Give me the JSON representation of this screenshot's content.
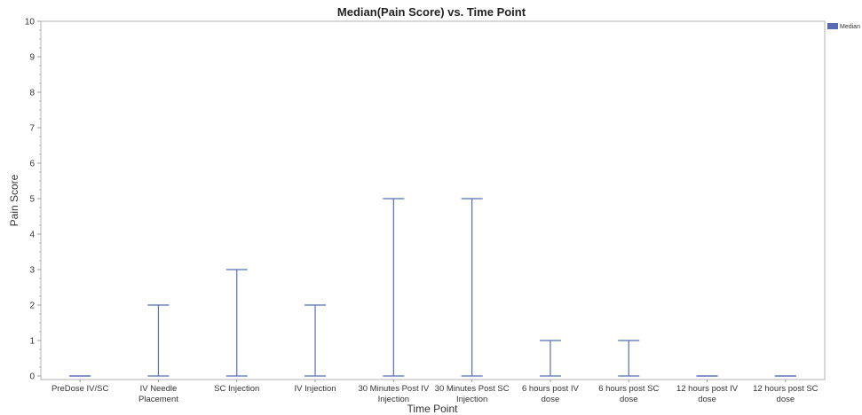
{
  "chart_data": {
    "type": "error-bar",
    "title": "Median(Pain Score) vs. Time Point",
    "xlabel": "Time Point",
    "ylabel": "Pain Score",
    "ylim": [
      0,
      10
    ],
    "yticks": [
      0,
      1,
      2,
      3,
      4,
      5,
      6,
      7,
      8,
      9,
      10
    ],
    "categories": [
      [
        "PreDose IV/SC"
      ],
      [
        "IV Needle",
        "Placement"
      ],
      [
        "SC Injection"
      ],
      [
        "IV Injection"
      ],
      [
        "30 Minutes Post IV",
        "Injection"
      ],
      [
        "30 Minutes Post SC",
        "Injection"
      ],
      [
        "6 hours post IV",
        "dose"
      ],
      [
        "6 hours post SC",
        "dose"
      ],
      [
        "12 hours post IV",
        "dose"
      ],
      [
        "12 hours post SC",
        "dose"
      ]
    ],
    "series": [
      {
        "name": "Median",
        "color": "#5a6bb5",
        "low": [
          0,
          0,
          0,
          0,
          0,
          0,
          0,
          0,
          0,
          0
        ],
        "high": [
          0,
          2,
          3,
          2,
          5,
          5,
          1,
          1,
          0,
          0
        ]
      }
    ],
    "legend": {
      "position": "top-right"
    },
    "grid": false
  }
}
